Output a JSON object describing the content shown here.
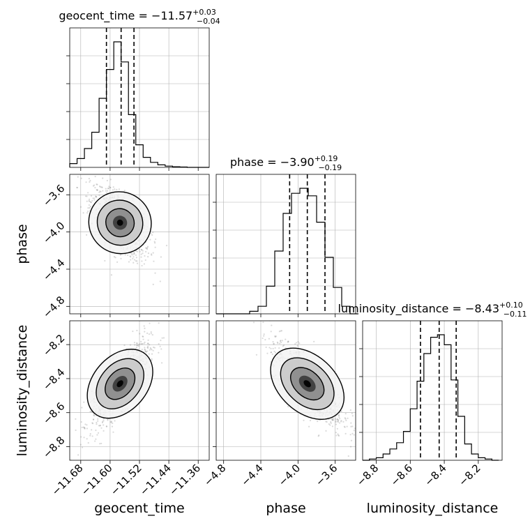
{
  "chart_data": {
    "type": "corner",
    "parameters": [
      "geocent_time",
      "phase",
      "luminosity_distance"
    ],
    "axis_labels": {
      "x": [
        "geocent_time",
        "phase",
        "luminosity_distance"
      ],
      "y": [
        "",
        "phase",
        "luminosity_distance"
      ]
    },
    "titles": [
      {
        "name": "geocent_time",
        "median": "−11.57",
        "plus": "+0.03",
        "minus": "−0.04"
      },
      {
        "name": "phase",
        "median": "−3.90",
        "plus": "+0.19",
        "minus": "−0.19"
      },
      {
        "name": "luminosity_distance",
        "median": "−8.43",
        "plus": "+0.10",
        "minus": "−0.11"
      }
    ],
    "ranges": [
      [
        -11.71,
        -11.33
      ],
      [
        -4.88,
        -3.38
      ],
      [
        -8.88,
        -8.06
      ]
    ],
    "ticks": {
      "geocent_time": [
        -11.68,
        -11.6,
        -11.52,
        -11.44,
        -11.36
      ],
      "phase": [
        -4.8,
        -4.4,
        -4.0,
        -3.6
      ],
      "luminosity_distance": [
        -8.8,
        -8.6,
        -8.4,
        -8.2
      ]
    },
    "tick_labels": {
      "geocent_time": [
        "−11.68",
        "−11.60",
        "−11.52",
        "−11.44",
        "−11.36"
      ],
      "phase": [
        "−4.8",
        "−4.4",
        "−4.0",
        "−3.6"
      ],
      "luminosity_distance": [
        "−8.8",
        "−8.6",
        "−8.4",
        "−8.2"
      ]
    },
    "quantiles": {
      "geocent_time": [
        -11.61,
        -11.57,
        -11.535
      ],
      "phase": [
        -4.09,
        -3.9,
        -3.71
      ],
      "luminosity_distance": [
        -8.54,
        -8.43,
        -8.33
      ]
    },
    "histograms": {
      "geocent_time": {
        "edges": [
          -11.71,
          -11.69,
          -11.67,
          -11.65,
          -11.63,
          -11.61,
          -11.59,
          -11.57,
          -11.55,
          -11.53,
          -11.51,
          -11.49,
          -11.47,
          -11.45,
          -11.43,
          -11.41,
          -11.39,
          -11.37,
          -11.35,
          -11.33
        ],
        "counts": [
          0.03,
          0.07,
          0.15,
          0.28,
          0.55,
          0.78,
          1.0,
          0.84,
          0.42,
          0.18,
          0.08,
          0.04,
          0.02,
          0.01,
          0.005,
          0.003,
          0.0,
          0.0,
          0.0
        ]
      },
      "phase": {
        "edges": [
          -4.88,
          -4.79,
          -4.7,
          -4.61,
          -4.52,
          -4.43,
          -4.34,
          -4.25,
          -4.16,
          -4.07,
          -3.98,
          -3.89,
          -3.8,
          -3.71,
          -3.62,
          -3.53,
          -3.44,
          -3.35
        ],
        "counts": [
          0.0,
          0.0,
          0.0,
          0.0,
          0.02,
          0.06,
          0.22,
          0.5,
          0.8,
          0.96,
          1.0,
          0.94,
          0.73,
          0.45,
          0.21,
          0.06,
          0.0
        ]
      },
      "luminosity_distance": {
        "edges": [
          -8.88,
          -8.84,
          -8.8,
          -8.76,
          -8.72,
          -8.68,
          -8.64,
          -8.6,
          -8.56,
          -8.52,
          -8.48,
          -8.44,
          -8.4,
          -8.36,
          -8.32,
          -8.28,
          -8.24,
          -8.2,
          -8.16,
          -8.12,
          -8.08
        ],
        "counts": [
          0.0,
          0.01,
          0.02,
          0.05,
          0.09,
          0.14,
          0.23,
          0.41,
          0.63,
          0.85,
          0.98,
          1.0,
          0.92,
          0.64,
          0.35,
          0.13,
          0.05,
          0.02,
          0.01,
          0.0
        ]
      }
    },
    "scatter_pairs": [
      {
        "x": "geocent_time",
        "y": "phase",
        "correlation": -0.6,
        "center": [
          -11.573,
          -3.9
        ],
        "spread": [
          0.035,
          0.17
        ]
      },
      {
        "x": "geocent_time",
        "y": "luminosity_distance",
        "correlation": 0.8,
        "center": [
          -11.573,
          -8.43
        ],
        "spread": [
          0.035,
          0.11
        ]
      },
      {
        "x": "phase",
        "y": "luminosity_distance",
        "correlation": -0.78,
        "center": [
          -3.9,
          -8.43
        ],
        "spread": [
          0.17,
          0.11
        ]
      }
    ],
    "grid": true,
    "colors": {
      "line": "#000000",
      "scatter": "#555555",
      "grid": "#b0b0b0",
      "fill_levels": [
        "#f2f2f2",
        "#c8c8c8",
        "#8a8a8a",
        "#3a3a3a",
        "#000000"
      ]
    }
  }
}
